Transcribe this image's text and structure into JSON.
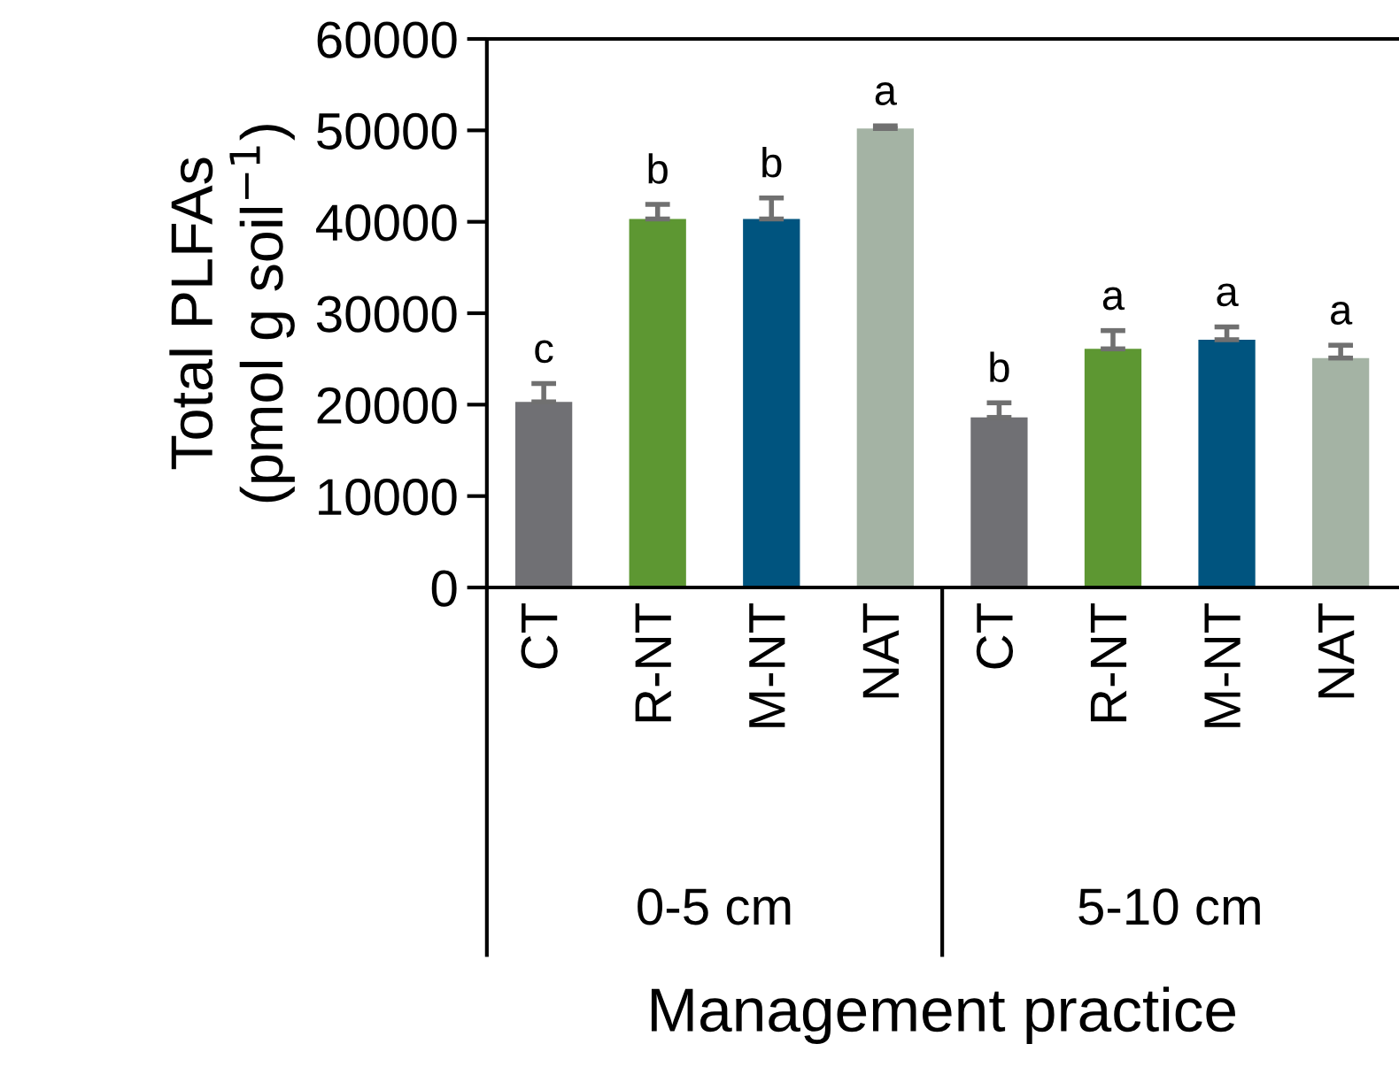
{
  "chart_data": {
    "type": "bar",
    "ylabel": "Total PLFAs\n(pmol g soil$^{−1}$)",
    "xlabel": "Management practice",
    "categories": [
      "CT",
      "R-NT",
      "M-NT",
      "NAT",
      "CT",
      "R-NT",
      "M-NT",
      "NAT"
    ],
    "annotations": [
      "0-5 cm",
      "5-10 cm"
    ],
    "values": [
      20300,
      40300,
      40300,
      50200,
      18600,
      26100,
      27100,
      25100
    ],
    "errors": [
      2000,
      1600,
      2300,
      300,
      1600,
      2000,
      1400,
      1400
    ],
    "colors": [
      "#707074",
      "#5d9732",
      "#00547f",
      "#a4b3a4",
      "#707074",
      "#5d9732",
      "#00547f",
      "#a4b3a4"
    ],
    "value_labels": [
      "c",
      "b",
      "b",
      "a",
      "b",
      "a",
      "a",
      "a"
    ],
    "ylim": [
      0,
      60000
    ],
    "yticks": [
      0,
      10000,
      20000,
      30000,
      40000,
      50000,
      60000
    ],
    "grid": false,
    "legend": false
  }
}
